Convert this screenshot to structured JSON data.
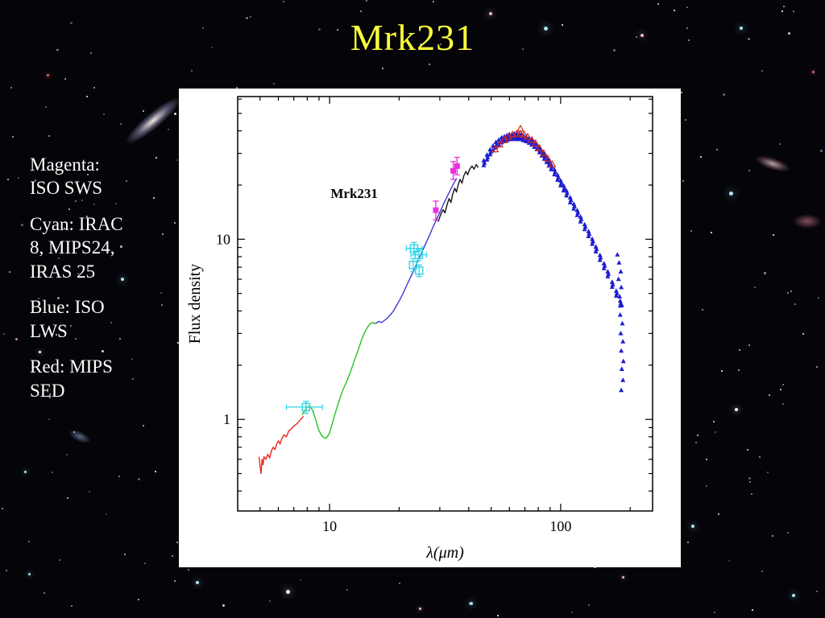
{
  "slide": {
    "title": "Mrk231",
    "title_color": "#ffff3c",
    "background_color": "#040409"
  },
  "legend": {
    "items": [
      "Magenta: ISO SWS",
      "Cyan: IRAC 8, MIPS24, IRAS 25",
      "Blue: ISO LWS",
      "Red: MIPS SED"
    ]
  },
  "chart_data": {
    "type": "scatter",
    "annotation": {
      "text": "Mrk231",
      "x": 10.1,
      "y": 17
    },
    "xlabel": "λ(μm)",
    "ylabel": "Flux density",
    "xscale": "log",
    "yscale": "log",
    "xlim": [
      4,
      250
    ],
    "ylim": [
      0.31,
      62
    ],
    "xticks_major": [
      10,
      100
    ],
    "xticks_minor": [
      5,
      6,
      7,
      8,
      9,
      20,
      30,
      40,
      50,
      60,
      70,
      80,
      90,
      200
    ],
    "yticks_major": [
      1,
      10
    ],
    "yticks_minor": [
      0.4,
      0.5,
      0.6,
      0.7,
      0.8,
      0.9,
      2,
      3,
      4,
      5,
      6,
      7,
      8,
      9,
      20,
      30,
      40,
      50,
      60
    ],
    "series": [
      {
        "name": "red-short-wavelength-spectrum",
        "type": "line",
        "color": "#e8281e",
        "points": [
          [
            4.95,
            0.62
          ],
          [
            5.0,
            0.55
          ],
          [
            5.05,
            0.5
          ],
          [
            5.1,
            0.6
          ],
          [
            5.15,
            0.56
          ],
          [
            5.2,
            0.62
          ],
          [
            5.3,
            0.6
          ],
          [
            5.4,
            0.64
          ],
          [
            5.5,
            0.61
          ],
          [
            5.6,
            0.67
          ],
          [
            5.7,
            0.7
          ],
          [
            5.8,
            0.68
          ],
          [
            5.9,
            0.73
          ],
          [
            6.0,
            0.76
          ],
          [
            6.1,
            0.73
          ],
          [
            6.2,
            0.78
          ],
          [
            6.35,
            0.82
          ],
          [
            6.5,
            0.8
          ],
          [
            6.65,
            0.86
          ],
          [
            6.8,
            0.88
          ],
          [
            6.95,
            0.91
          ],
          [
            7.1,
            0.93
          ],
          [
            7.3,
            0.96
          ],
          [
            7.5,
            1.0
          ],
          [
            7.7,
            1.04
          ]
        ]
      },
      {
        "name": "green-spectrum",
        "type": "line",
        "color": "#22c422",
        "points": [
          [
            7.6,
            1.06
          ],
          [
            7.8,
            1.12
          ],
          [
            8.0,
            1.17
          ],
          [
            8.2,
            1.19
          ],
          [
            8.45,
            1.12
          ],
          [
            8.7,
            1.0
          ],
          [
            8.95,
            0.88
          ],
          [
            9.2,
            0.82
          ],
          [
            9.45,
            0.79
          ],
          [
            9.7,
            0.79
          ],
          [
            9.95,
            0.83
          ],
          [
            10.2,
            0.92
          ],
          [
            10.5,
            1.05
          ],
          [
            10.8,
            1.18
          ],
          [
            11.1,
            1.32
          ],
          [
            11.4,
            1.45
          ],
          [
            11.8,
            1.6
          ],
          [
            12.2,
            1.78
          ],
          [
            12.6,
            2.0
          ],
          [
            13.0,
            2.25
          ],
          [
            13.4,
            2.5
          ],
          [
            13.8,
            2.8
          ],
          [
            14.2,
            3.05
          ],
          [
            14.6,
            3.25
          ],
          [
            15.0,
            3.4
          ],
          [
            15.4,
            3.45
          ],
          [
            15.8,
            3.4
          ]
        ]
      },
      {
        "name": "blue-mid-ir-spectrum",
        "type": "line",
        "color": "#3a3ad0",
        "points": [
          [
            15.8,
            3.4
          ],
          [
            16.3,
            3.5
          ],
          [
            16.8,
            3.45
          ],
          [
            17.3,
            3.55
          ],
          [
            17.8,
            3.65
          ],
          [
            18.3,
            3.8
          ],
          [
            18.9,
            4.0
          ],
          [
            19.5,
            4.3
          ],
          [
            20.1,
            4.6
          ],
          [
            20.8,
            5.0
          ],
          [
            21.5,
            5.5
          ],
          [
            22.2,
            6.0
          ],
          [
            23.0,
            6.6
          ],
          [
            23.8,
            7.3
          ],
          [
            24.6,
            8.0
          ],
          [
            25.5,
            8.9
          ],
          [
            26.4,
            9.8
          ],
          [
            27.3,
            10.8
          ],
          [
            28.2,
            11.9
          ],
          [
            29.2,
            13.1
          ],
          [
            30.2,
            14.4
          ],
          [
            31.2,
            15.8
          ],
          [
            32.3,
            17.3
          ],
          [
            33.4,
            18.9
          ],
          [
            34.5,
            20.5
          ],
          [
            35.5,
            21.8
          ]
        ]
      },
      {
        "name": "black-spectrum",
        "type": "line",
        "color": "#151515",
        "points": [
          [
            29.5,
            12.5
          ],
          [
            30.3,
            13.8
          ],
          [
            31.0,
            14.6
          ],
          [
            31.6,
            14.0
          ],
          [
            32.2,
            15.5
          ],
          [
            32.9,
            16.8
          ],
          [
            33.5,
            16.0
          ],
          [
            34.1,
            17.8
          ],
          [
            34.8,
            19.2
          ],
          [
            35.4,
            18.3
          ],
          [
            36.0,
            20.0
          ],
          [
            36.7,
            21.5
          ],
          [
            37.4,
            20.5
          ],
          [
            38.1,
            22.5
          ],
          [
            38.9,
            23.8
          ],
          [
            39.6,
            22.8
          ],
          [
            40.4,
            24.5
          ],
          [
            41.3,
            25.5
          ],
          [
            42.2,
            24.5
          ],
          [
            43.1,
            26.0
          ],
          [
            44.0,
            25.0
          ]
        ]
      },
      {
        "name": "cyan-photometry-irac8-mips24-iras25",
        "type": "square-open",
        "color": "#35d5e6",
        "points": [
          {
            "x": 7.9,
            "y": 1.17,
            "xerr": [
              6.5,
              9.3
            ],
            "yerr": [
              1.08,
              1.26
            ]
          },
          {
            "x": 23.2,
            "y": 8.9,
            "xerr": [
              21.5,
              25.2
            ],
            "yerr": [
              8.2,
              9.6
            ]
          },
          {
            "x": 24.3,
            "y": 8.2,
            "xerr": [
              22.5,
              26.3
            ],
            "yerr": [
              7.6,
              8.8
            ]
          },
          {
            "x": 23.0,
            "y": 7.2,
            "yerr": [
              6.6,
              7.8
            ]
          },
          {
            "x": 24.4,
            "y": 6.7,
            "yerr": [
              6.2,
              7.2
            ]
          }
        ]
      },
      {
        "name": "magenta-photometry-iso-sws",
        "type": "square-filled",
        "color": "#ee2ce0",
        "points": [
          {
            "x": 28.8,
            "y": 14.5,
            "yerr": [
              12.8,
              16.3
            ]
          },
          {
            "x": 34.3,
            "y": 24.0,
            "yerr": [
              21.5,
              27.0
            ]
          },
          {
            "x": 35.6,
            "y": 25.5,
            "yerr": [
              22.8,
              28.5
            ]
          }
        ]
      },
      {
        "name": "blue-iso-lws-triangles",
        "type": "triangle-filled",
        "color": "#1c1cd2",
        "band": true,
        "points": [
          [
            46.5,
            26.5
          ],
          [
            48,
            28.5
          ],
          [
            49.5,
            30.5
          ],
          [
            51,
            32
          ],
          [
            52.5,
            33.5
          ],
          [
            54,
            34.5
          ],
          [
            55.5,
            35.5
          ],
          [
            57,
            36
          ],
          [
            58.5,
            36.5
          ],
          [
            60,
            37
          ],
          [
            61.5,
            37
          ],
          [
            63,
            37.3
          ],
          [
            64.5,
            37
          ],
          [
            66,
            37.3
          ],
          [
            67.5,
            37
          ],
          [
            69,
            36.5
          ],
          [
            71,
            36
          ],
          [
            73,
            35.3
          ],
          [
            75,
            34.5
          ],
          [
            77,
            33.5
          ],
          [
            79,
            32.5
          ],
          [
            81,
            31.3
          ],
          [
            83,
            30
          ],
          [
            85,
            28.8
          ],
          [
            87,
            27.6
          ],
          [
            89,
            26.4
          ],
          [
            91,
            25.2
          ],
          [
            94,
            23.6
          ],
          [
            97,
            22
          ],
          [
            100,
            20.5
          ],
          [
            103,
            19.2
          ],
          [
            106,
            18
          ],
          [
            110,
            16.5
          ],
          [
            114,
            15.2
          ],
          [
            118,
            14
          ],
          [
            122,
            12.9
          ],
          [
            127,
            11.7
          ],
          [
            132,
            10.7
          ],
          [
            137,
            9.7
          ],
          [
            142,
            8.8
          ],
          [
            148,
            7.9
          ],
          [
            154,
            7.1
          ],
          [
            160,
            6.4
          ],
          [
            167,
            5.6
          ],
          [
            174,
            5.0
          ],
          [
            181,
            4.4
          ]
        ]
      },
      {
        "name": "blue-iso-lws-scatter-tail",
        "type": "triangle-filled",
        "color": "#1c1cd2",
        "band": false,
        "points": [
          [
            176,
            8.2
          ],
          [
            179,
            7.4
          ],
          [
            182,
            6.6
          ],
          [
            178,
            6.0
          ],
          [
            183,
            5.4
          ],
          [
            180,
            4.8
          ],
          [
            184,
            4.3
          ],
          [
            181,
            3.8
          ],
          [
            185,
            3.4
          ],
          [
            182,
            3.0
          ],
          [
            186,
            2.7
          ],
          [
            183,
            2.4
          ],
          [
            187,
            2.1
          ],
          [
            184,
            1.9
          ],
          [
            186,
            1.65
          ],
          [
            183,
            1.45
          ]
        ]
      },
      {
        "name": "red-mips-sed-triangles",
        "type": "triangle-open",
        "color": "#d42a1c",
        "points": [
          [
            52,
            31.5
          ],
          [
            54.5,
            33.5
          ],
          [
            57,
            35.5
          ],
          [
            59.5,
            37
          ],
          [
            62,
            38
          ],
          [
            64.5,
            38.5
          ],
          [
            67,
            41
          ],
          [
            67,
            38.5
          ],
          [
            69.5,
            38
          ],
          [
            72,
            37
          ],
          [
            75,
            35.5
          ],
          [
            78,
            34
          ],
          [
            81,
            32
          ],
          [
            84.5,
            30
          ],
          [
            88,
            28
          ],
          [
            92,
            26
          ]
        ]
      }
    ]
  }
}
